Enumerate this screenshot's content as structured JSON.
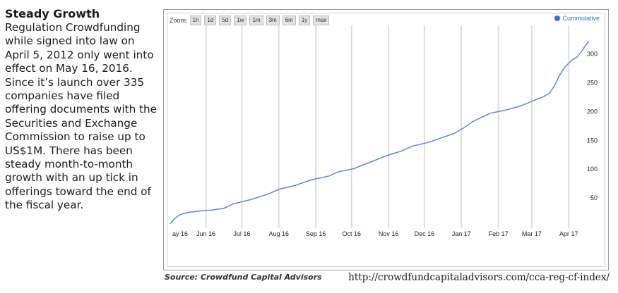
{
  "sidebar": {
    "title": "Steady Growth",
    "body": "Regulation Crowdfunding while signed into law on April 5, 2012 only went into effect on May 16, 2016. Since it’s launch over 335 companies have filed offering documents with the Securities and Exchange Commission to raise up to US$1M. There has been steady month-to-month growth with an up tick in offerings toward the end of the fiscal year."
  },
  "zoom": {
    "label": "Zoom:",
    "options": [
      "1h",
      "1d",
      "5d",
      "1w",
      "1m",
      "3m",
      "6m",
      "1y",
      "max"
    ]
  },
  "footer": {
    "source": "Source: Crowdfund Capital Advisors",
    "url": "http://crowdfundcapitaladvisors.com/cca-reg-cf-index/"
  },
  "colors": {
    "line": "#5b88d8",
    "legend": "#3d6fc2",
    "grid": "#dcdcdc"
  },
  "chart_data": {
    "type": "line",
    "title": "",
    "xlabel": "",
    "ylabel": "",
    "legend": {
      "position": "top-right",
      "entries": [
        "Cummulative"
      ]
    },
    "grid": true,
    "x_ticks": [
      "ay 16",
      "Jun 16",
      "Jul 16",
      "Aug 16",
      "Sep 16",
      "Oct 16",
      "Nov 16",
      "Dec 16",
      "Jan 17",
      "Feb 17",
      "Mar 17",
      "Apr 17"
    ],
    "y_ticks": [
      50,
      100,
      150,
      200,
      250,
      300
    ],
    "xlim": [
      "2016-05-16",
      "2017-05-02"
    ],
    "ylim": [
      0,
      340
    ],
    "series": [
      {
        "name": "Cummulative",
        "points": [
          [
            "2016-05-16",
            5
          ],
          [
            "2016-05-19",
            13
          ],
          [
            "2016-05-24",
            21
          ],
          [
            "2016-05-31",
            25
          ],
          [
            "2016-06-08",
            27
          ],
          [
            "2016-06-20",
            29
          ],
          [
            "2016-06-30",
            32
          ],
          [
            "2016-07-08",
            40
          ],
          [
            "2016-07-22",
            47
          ],
          [
            "2016-08-05",
            56
          ],
          [
            "2016-08-15",
            65
          ],
          [
            "2016-08-29",
            72
          ],
          [
            "2016-09-12",
            82
          ],
          [
            "2016-09-26",
            88
          ],
          [
            "2016-10-03",
            95
          ],
          [
            "2016-10-17",
            101
          ],
          [
            "2016-10-24",
            107
          ],
          [
            "2016-11-03",
            115
          ],
          [
            "2016-11-14",
            124
          ],
          [
            "2016-11-25",
            131
          ],
          [
            "2016-12-05",
            140
          ],
          [
            "2016-12-19",
            147
          ],
          [
            "2016-12-30",
            155
          ],
          [
            "2017-01-09",
            162
          ],
          [
            "2017-01-18",
            173
          ],
          [
            "2017-01-24",
            182
          ],
          [
            "2017-02-01",
            190
          ],
          [
            "2017-02-08",
            197
          ],
          [
            "2017-02-22",
            203
          ],
          [
            "2017-03-06",
            210
          ],
          [
            "2017-03-15",
            218
          ],
          [
            "2017-03-24",
            225
          ],
          [
            "2017-03-30",
            232
          ],
          [
            "2017-04-03",
            245
          ],
          [
            "2017-04-07",
            262
          ],
          [
            "2017-04-12",
            278
          ],
          [
            "2017-04-18",
            290
          ],
          [
            "2017-04-22",
            295
          ],
          [
            "2017-04-26",
            305
          ],
          [
            "2017-04-29",
            315
          ],
          [
            "2017-05-02",
            322
          ]
        ]
      }
    ]
  }
}
